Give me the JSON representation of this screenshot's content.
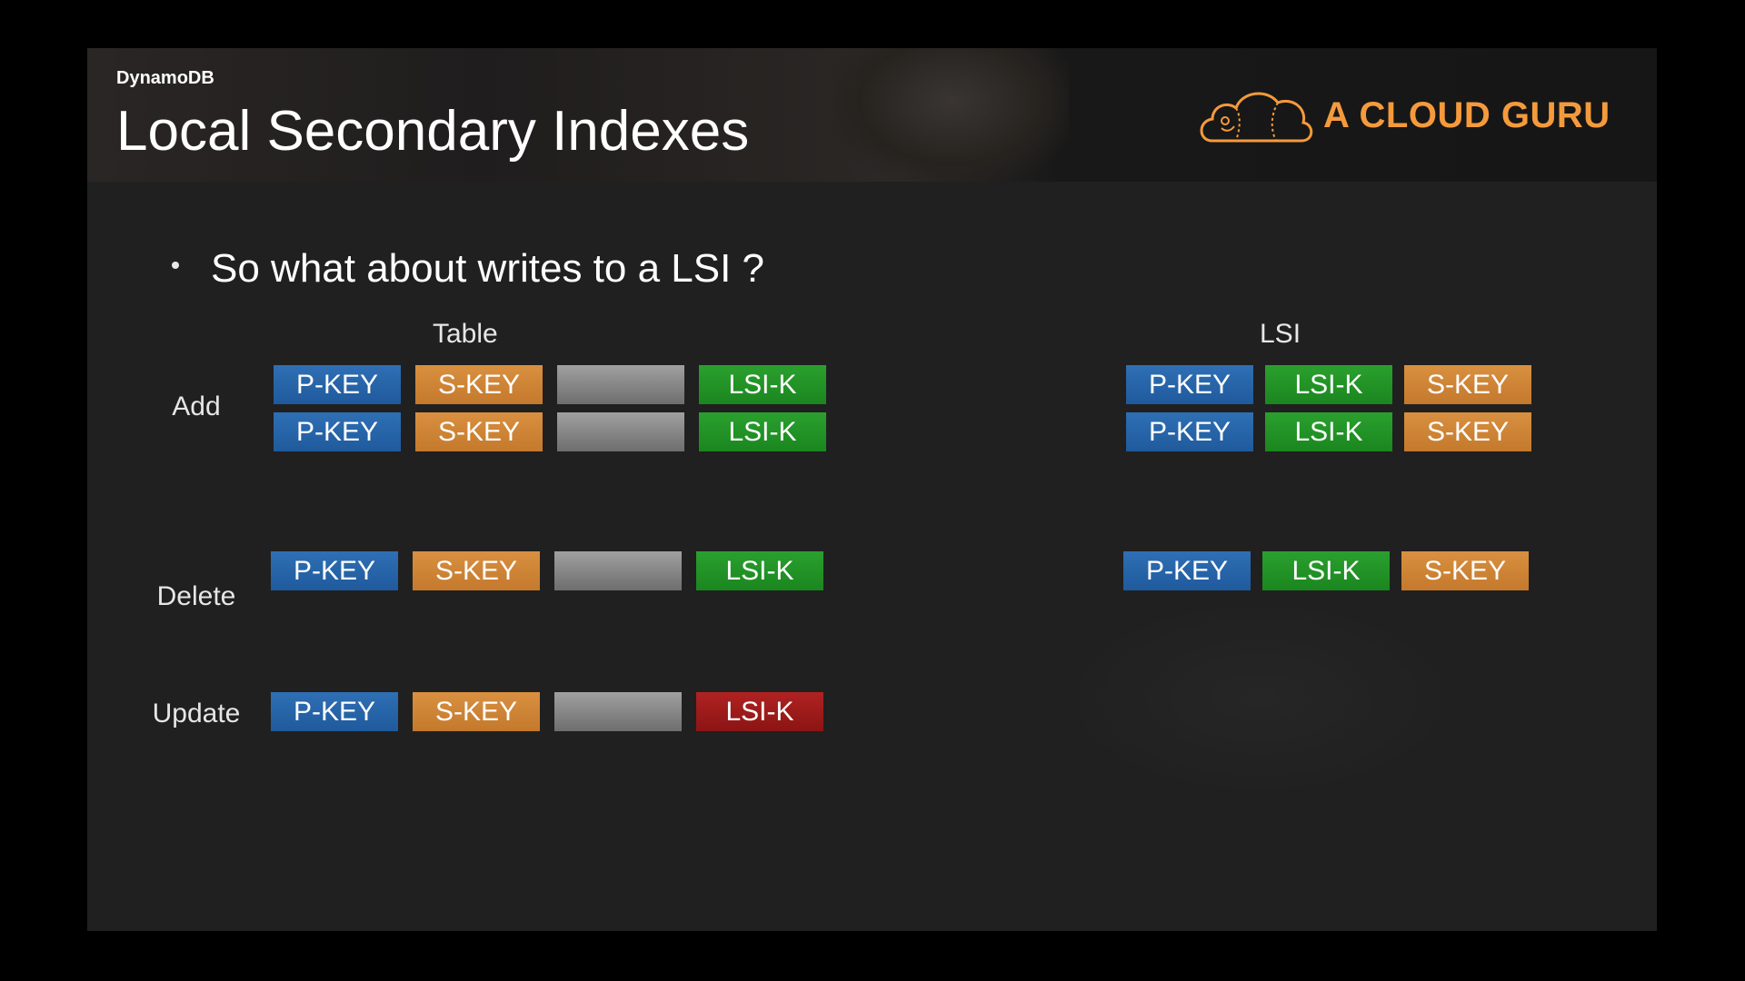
{
  "header": {
    "kicker": "DynamoDB",
    "title": "Local Secondary Indexes",
    "logo_text": "A CLOUD GURU",
    "logo_color": "#f59a3c"
  },
  "bullet": "So what about writes to a LSI ?",
  "columns": {
    "table": "Table",
    "lsi": "LSI"
  },
  "rows": {
    "add": "Add",
    "delete": "Delete",
    "update": "Update"
  },
  "keys": {
    "pkey": "P-KEY",
    "skey": "S-KEY",
    "lsik": "LSI-K",
    "data": ""
  },
  "colors": {
    "pkey": "#2f6fb5",
    "skey": "#d99040",
    "lsik": "#2aa02e",
    "data": "#8c8c8c",
    "lsik_changed": "#b02222"
  }
}
